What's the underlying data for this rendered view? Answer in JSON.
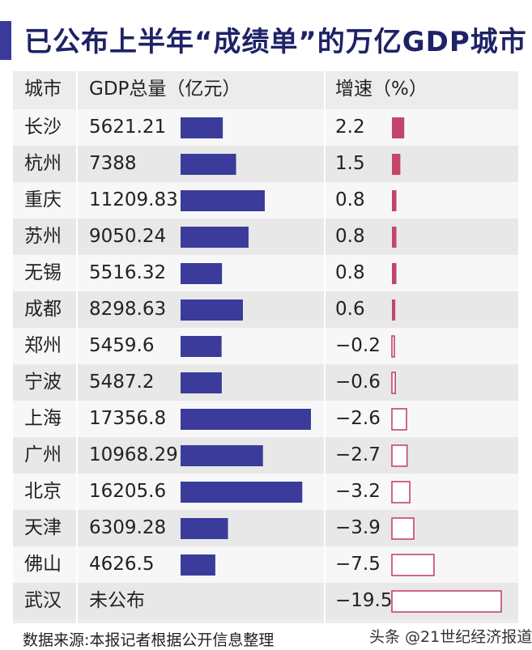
{
  "title": "已公布上半年“成绩单”的万亿GDP城市",
  "table": {
    "headers": {
      "city": "城市",
      "gdp": "GDP总量（亿元）",
      "growth": "增速（%）"
    }
  },
  "footer": {
    "source": "数据来源:本报记者根据公开信息整理",
    "watermark": "头条 @21世纪经济报道"
  },
  "colors": {
    "gdp_bar": "#3a3b9a",
    "growth_bar": "#c4456a",
    "title": "#1e2266"
  },
  "chart_data": {
    "type": "table",
    "columns": [
      "城市",
      "GDP总量（亿元）",
      "增速（%）"
    ],
    "rows": [
      {
        "city": "长沙",
        "gdp_text": "5621.21",
        "gdp": 5621.21,
        "growth_text": "2.2",
        "growth": 2.2
      },
      {
        "city": "杭州",
        "gdp_text": "7388",
        "gdp": 7388,
        "growth_text": "1.5",
        "growth": 1.5
      },
      {
        "city": "重庆",
        "gdp_text": "11209.83",
        "gdp": 11209.83,
        "growth_text": "0.8",
        "growth": 0.8
      },
      {
        "city": "苏州",
        "gdp_text": "9050.24",
        "gdp": 9050.24,
        "growth_text": "0.8",
        "growth": 0.8
      },
      {
        "city": "无锡",
        "gdp_text": "5516.32",
        "gdp": 5516.32,
        "growth_text": "0.8",
        "growth": 0.8
      },
      {
        "city": "成都",
        "gdp_text": "8298.63",
        "gdp": 8298.63,
        "growth_text": "0.6",
        "growth": 0.6
      },
      {
        "city": "郑州",
        "gdp_text": "5459.6",
        "gdp": 5459.6,
        "growth_text": "−0.2",
        "growth": -0.2
      },
      {
        "city": "宁波",
        "gdp_text": "5487.2",
        "gdp": 5487.2,
        "growth_text": "−0.6",
        "growth": -0.6
      },
      {
        "city": "上海",
        "gdp_text": "17356.8",
        "gdp": 17356.8,
        "growth_text": "−2.6",
        "growth": -2.6
      },
      {
        "city": "广州",
        "gdp_text": "10968.29",
        "gdp": 10968.29,
        "growth_text": "−2.7",
        "growth": -2.7
      },
      {
        "city": "北京",
        "gdp_text": "16205.6",
        "gdp": 16205.6,
        "growth_text": "−3.2",
        "growth": -3.2
      },
      {
        "city": "天津",
        "gdp_text": "6309.28",
        "gdp": 6309.28,
        "growth_text": "−3.9",
        "growth": -3.9
      },
      {
        "city": "佛山",
        "gdp_text": "4626.5",
        "gdp": 4626.5,
        "growth_text": "−7.5",
        "growth": -7.5
      },
      {
        "city": "武汉",
        "gdp_text": "未公布",
        "gdp": null,
        "growth_text": "−19.5",
        "growth": -19.5
      }
    ]
  }
}
